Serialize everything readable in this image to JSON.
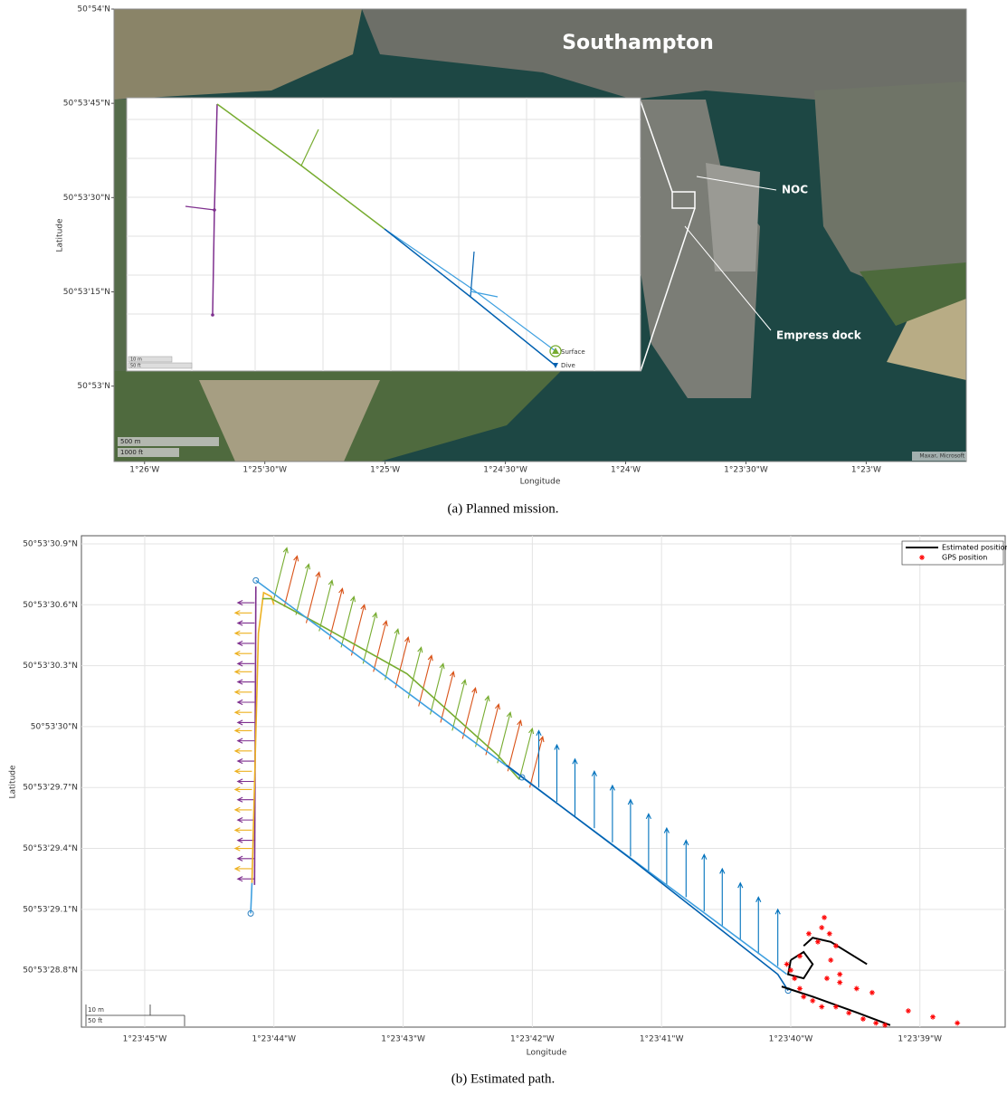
{
  "chart_data": [
    {
      "type": "map",
      "xlabel": "Longitude",
      "ylabel": "Latitude",
      "xlim": [
        86.127,
        82.584
      ],
      "ylim": [
        52.8,
        54.0
      ],
      "xticks": [
        {
          "value": 86,
          "label": "1°26'W"
        },
        {
          "value": 85.5,
          "label": "1°25'30\"W"
        },
        {
          "value": 85,
          "label": "1°25'W"
        },
        {
          "value": 84.5,
          "label": "1°24'30\"W"
        },
        {
          "value": 84,
          "label": "1°24'W"
        },
        {
          "value": 83.5,
          "label": "1°23'30\"W"
        },
        {
          "value": 83,
          "label": "1°23'W"
        }
      ],
      "yticks": [
        {
          "value": 54,
          "label": "50°54'N"
        },
        {
          "value": 53.75,
          "label": "50°53'45\"N"
        },
        {
          "value": 53.5,
          "label": "50°53'30\"N"
        },
        {
          "value": 53.25,
          "label": "50°53'15\"N"
        },
        {
          "value": 53,
          "label": "50°53'N"
        }
      ],
      "annotations": [
        "Southampton",
        "NOC",
        "Empress dock"
      ],
      "scale_bar": [
        "500 m",
        "1000 ft"
      ],
      "attribution": "Maxar, Microsoft",
      "inset": {
        "legend": [
          "Surface",
          "Dive"
        ],
        "scale_bar": [
          "10 m",
          "50 ft"
        ]
      },
      "caption": "(a) Planned mission."
    },
    {
      "type": "line",
      "xlabel": "Longitude",
      "ylabel": "Latitude",
      "xlim": [
        45.49,
        38.34
      ],
      "ylim": [
        28.52,
        30.94
      ],
      "grid": true,
      "legend": "upper right",
      "xticks": [
        {
          "value": 45,
          "label": "1°23'45\"W"
        },
        {
          "value": 44,
          "label": "1°23'44\"W"
        },
        {
          "value": 43,
          "label": "1°23'43\"W"
        },
        {
          "value": 42,
          "label": "1°23'42\"W"
        },
        {
          "value": 41,
          "label": "1°23'41\"W"
        },
        {
          "value": 40,
          "label": "1°23'40\"W"
        },
        {
          "value": 39,
          "label": "1°23'39\"W"
        }
      ],
      "yticks": [
        {
          "value": 30.9,
          "label": "50°53'30.9\"N"
        },
        {
          "value": 30.6,
          "label": "50°53'30.6\"N"
        },
        {
          "value": 30.3,
          "label": "50°53'30.3\"N"
        },
        {
          "value": 30,
          "label": "50°53'30\"N"
        },
        {
          "value": 29.7,
          "label": "50°53'29.7\"N"
        },
        {
          "value": 29.4,
          "label": "50°53'29.4\"N"
        },
        {
          "value": 29.1,
          "label": "50°53'29.1\"N"
        },
        {
          "value": 28.8,
          "label": "50°53'28.8\"N"
        }
      ],
      "quivers": [
        {
          "color": "#7e2f8e",
          "x": [
            44.15,
            44.15,
            44.15,
            44.15,
            44.15,
            44.15,
            44.15,
            44.15,
            44.15,
            44.15,
            44.15,
            44.15,
            44.15,
            44.15,
            44.15
          ],
          "y": [
            29.25,
            29.35,
            29.44,
            29.54,
            29.64,
            29.73,
            29.83,
            29.93,
            30.02,
            30.12,
            30.22,
            30.31,
            30.41,
            30.51,
            30.61
          ],
          "u": 0.13,
          "v": 0
        },
        {
          "color": "#edb120",
          "x": [
            44.17,
            44.17,
            44.17,
            44.17,
            44.17,
            44.17,
            44.17,
            44.17,
            44.17,
            44.17,
            44.17,
            44.17,
            44.17,
            44.17
          ],
          "y": [
            29.3,
            29.4,
            29.49,
            29.59,
            29.69,
            29.78,
            29.88,
            29.98,
            30.07,
            30.17,
            30.27,
            30.36,
            30.46,
            30.56
          ],
          "u": 0.13,
          "v": 0
        },
        {
          "color": "#77ac30",
          "x": [
            44.0,
            43.83,
            43.65,
            43.48,
            43.31,
            43.14,
            42.96,
            42.79,
            42.62,
            42.44,
            42.27,
            42.1
          ],
          "y": [
            30.63,
            30.55,
            30.47,
            30.39,
            30.31,
            30.23,
            30.14,
            30.06,
            29.98,
            29.9,
            29.82,
            29.74
          ],
          "u": -0.1,
          "v": 0.25
        },
        {
          "color": "#d95319",
          "x": [
            43.92,
            43.75,
            43.57,
            43.4,
            43.23,
            43.06,
            42.88,
            42.71,
            42.54,
            42.36,
            42.19,
            42.02
          ],
          "y": [
            30.59,
            30.51,
            30.43,
            30.35,
            30.27,
            30.19,
            30.1,
            30.02,
            29.94,
            29.86,
            29.78,
            29.7
          ],
          "u": -0.1,
          "v": 0.25
        },
        {
          "color": "#0072bd",
          "x": [
            41.95,
            41.81,
            41.67,
            41.52,
            41.38,
            41.24,
            41.1,
            40.96,
            40.81,
            40.67,
            40.53,
            40.39,
            40.25,
            40.1
          ],
          "y": [
            29.7,
            29.63,
            29.56,
            29.5,
            29.43,
            29.36,
            29.29,
            29.22,
            29.16,
            29.09,
            29.02,
            28.95,
            28.88,
            28.82
          ],
          "u": 0,
          "v": 0.28
        }
      ],
      "series": [
        {
          "color": "#7e2f8e",
          "x": [
            44.15,
            44.14
          ],
          "y": [
            29.22,
            30.69
          ]
        },
        {
          "color": "#edb120",
          "x": [
            44.17,
            44.12,
            44.08,
            44.02,
            44.0
          ],
          "y": [
            29.23,
            30.46,
            30.66,
            30.64,
            30.6
          ]
        },
        {
          "color": "#77ac30",
          "x": [
            44.09,
            44.02,
            43.67,
            42.97,
            42.27,
            42.1
          ],
          "y": [
            30.63,
            30.63,
            30.51,
            30.26,
            29.86,
            29.74
          ]
        },
        {
          "color": "#3fa0e0",
          "x": [
            44.18,
            44.17,
            null,
            44.14,
            42.08,
            40.03
          ],
          "y": [
            29.08,
            29.23,
            null,
            30.72,
            29.75,
            28.78
          ]
        },
        {
          "color": "#0060b0",
          "x": [
            42.2,
            41.22,
            40.1,
            40.02
          ],
          "y": [
            29.81,
            29.34,
            28.78,
            28.7
          ]
        },
        {
          "color": "#2a7fc0",
          "marker": "circle",
          "x": [
            44.14,
            44.18,
            42.08,
            40.02
          ],
          "y": [
            30.72,
            29.08,
            29.75,
            28.7
          ]
        },
        {
          "name": "Estimated position",
          "color": "#000000",
          "x": [
            40.07,
            39.83,
            39.48,
            39.23,
            null,
            40.0,
            39.9,
            39.83,
            39.9,
            40.02,
            40.0,
            null,
            39.9,
            39.83,
            39.69,
            39.41
          ],
          "y": [
            28.72,
            28.67,
            28.59,
            28.53,
            null,
            28.85,
            28.89,
            28.83,
            28.76,
            28.78,
            28.85,
            null,
            28.92,
            28.96,
            28.94,
            28.83
          ]
        },
        {
          "name": "GPS position",
          "color": "#ff0000",
          "marker": "star",
          "x": [
            39.97,
            40.0,
            39.93,
            39.9,
            39.83,
            39.76,
            39.65,
            39.55,
            39.44,
            39.34,
            39.27,
            39.79,
            39.76,
            39.74,
            39.7,
            39.65,
            39.69,
            39.62,
            39.72,
            39.62,
            39.49,
            39.37,
            39.09,
            38.9,
            38.71,
            39.86,
            39.93,
            40.03
          ],
          "y": [
            28.76,
            28.8,
            28.71,
            28.67,
            28.65,
            28.62,
            28.62,
            28.59,
            28.56,
            28.54,
            28.53,
            28.94,
            29.01,
            29.06,
            28.98,
            28.92,
            28.85,
            28.78,
            28.76,
            28.74,
            28.71,
            28.69,
            28.6,
            28.57,
            28.54,
            28.98,
            28.87,
            28.83
          ]
        }
      ],
      "scale_bar": [
        "10 m",
        "50 ft"
      ],
      "caption": "(b) Estimated path."
    }
  ]
}
